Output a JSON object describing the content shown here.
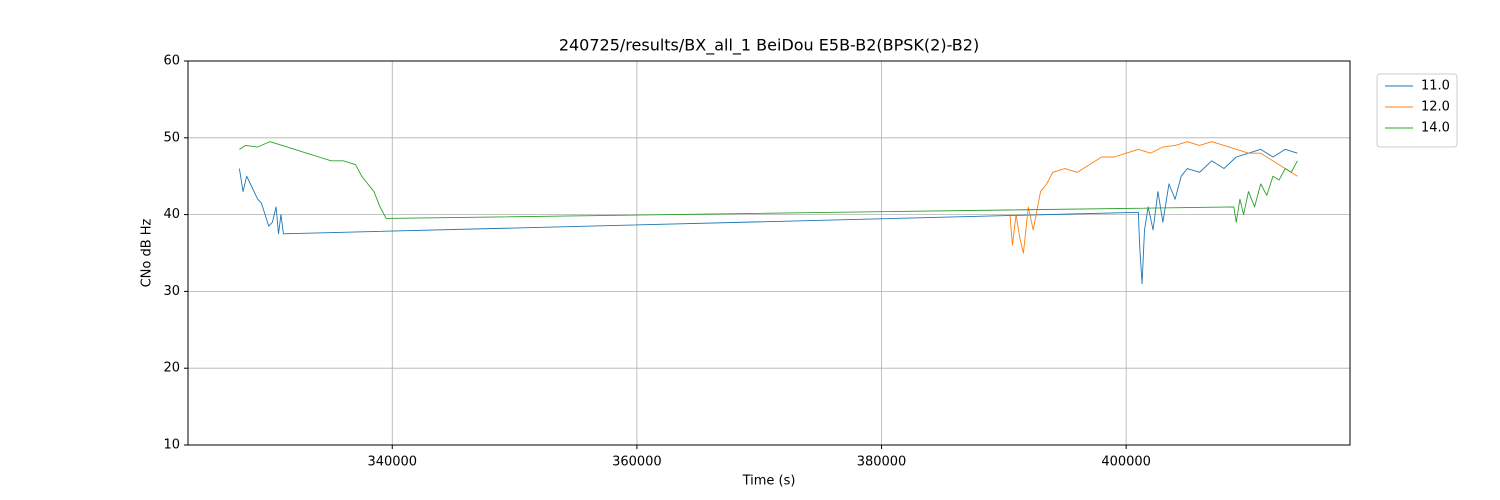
{
  "chart_data": {
    "type": "line",
    "title": "240725/results/BX_all_1 BeiDou E5B-B2(BPSK(2)-B2)",
    "x_label": "Time (s)",
    "y_label": "CNo dB Hz",
    "xlim": [
      323300,
      418300
    ],
    "ylim": [
      10,
      60
    ],
    "xticks": [
      340000,
      360000,
      380000,
      400000
    ],
    "yticks": [
      10,
      20,
      30,
      40,
      50,
      60
    ],
    "grid": true,
    "legend": "upper right",
    "series": [
      {
        "name": "11.0",
        "color": "#1f77b4",
        "x": [
          327500,
          327800,
          328100,
          328400,
          328700,
          329000,
          329300,
          329600,
          329900,
          330200,
          330500,
          330700,
          330900,
          331100,
          401000,
          401100,
          401300,
          401500,
          401800,
          402200,
          402600,
          403000,
          403500,
          404000,
          404500,
          405000,
          406000,
          407000,
          408000,
          409000,
          410000,
          411000,
          412000,
          413000,
          414000
        ],
        "values": [
          46,
          43,
          45,
          44,
          43,
          42,
          41.5,
          40,
          38.5,
          39,
          41,
          37.5,
          40,
          37.5,
          40.3,
          36,
          31,
          38,
          41,
          38,
          43,
          39,
          44,
          42,
          45,
          46,
          45.5,
          47,
          46,
          47.5,
          48,
          48.5,
          47.5,
          48.5,
          48
        ]
      },
      {
        "name": "12.0",
        "color": "#ff7f0e",
        "x": [
          390500,
          390700,
          391000,
          391300,
          391600,
          392000,
          392400,
          393000,
          393500,
          394000,
          395000,
          396000,
          397000,
          398000,
          399000,
          400000,
          401000,
          402000,
          403000,
          404000,
          405000,
          406000,
          407000,
          408000,
          409000,
          410000,
          411000,
          412000,
          413000,
          414000
        ],
        "values": [
          40,
          36,
          40,
          37,
          35,
          41,
          38,
          43,
          44,
          45.5,
          46,
          45.5,
          46.5,
          47.5,
          47.5,
          48,
          48.5,
          48,
          48.8,
          49,
          49.5,
          49,
          49.5,
          49,
          48.5,
          48,
          48,
          47,
          46,
          45
        ]
      },
      {
        "name": "14.0",
        "color": "#2ca02c",
        "x": [
          327500,
          328000,
          329000,
          330000,
          331000,
          332000,
          333000,
          334000,
          335000,
          336000,
          337000,
          337500,
          338000,
          338500,
          339000,
          339500,
          408800,
          409000,
          409300,
          409600,
          410000,
          410500,
          411000,
          411500,
          412000,
          412500,
          413000,
          413500,
          414000
        ],
        "values": [
          48.5,
          49,
          48.8,
          49.5,
          49,
          48.5,
          48,
          47.5,
          47,
          47,
          46.5,
          45,
          44,
          43,
          41,
          39.5,
          41,
          39,
          42,
          40,
          43,
          41,
          44,
          42.5,
          45,
          44.5,
          46,
          45.5,
          47
        ]
      }
    ]
  }
}
